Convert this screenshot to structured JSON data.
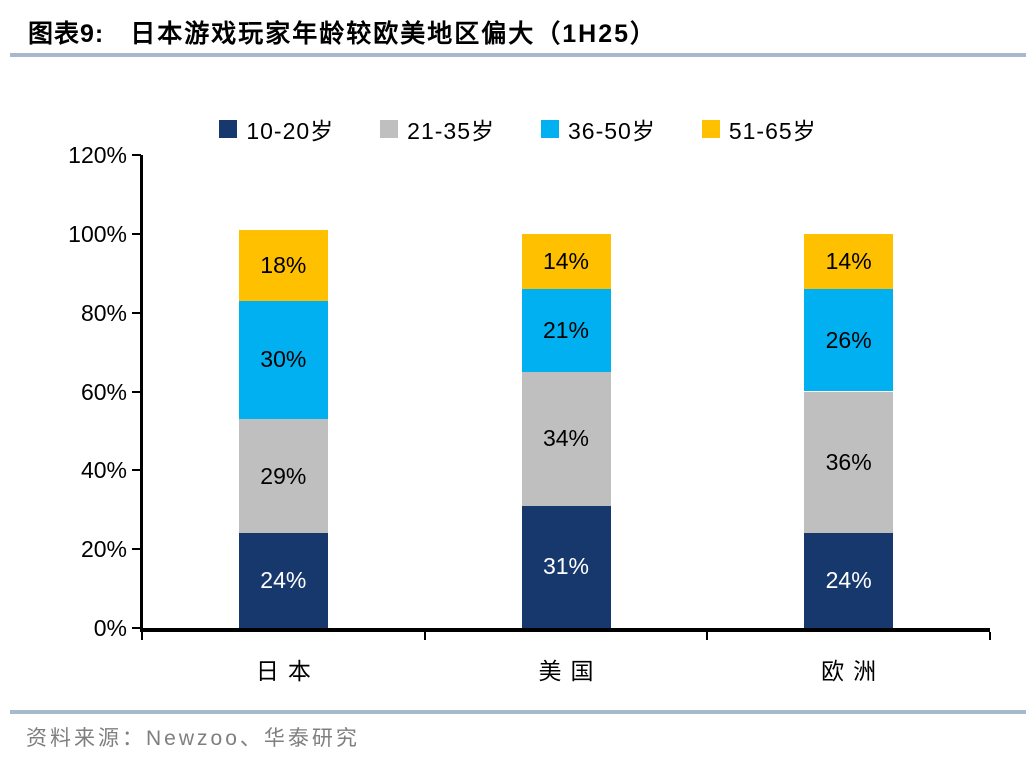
{
  "header": {
    "tag": "图表9:",
    "title": "日本游戏玩家年龄较欧美地区偏大（1H25）"
  },
  "chart_data": {
    "type": "bar",
    "stacked": true,
    "title": "日本游戏玩家年龄较欧美地区偏大（1H25）",
    "categories": [
      "日本",
      "美国",
      "欧洲"
    ],
    "series": [
      {
        "name": "10-20岁",
        "color": "#17386d",
        "label_color": "#ffffff",
        "values": [
          24,
          31,
          24
        ]
      },
      {
        "name": "21-35岁",
        "color": "#bfbfbf",
        "label_color": "#000000",
        "values": [
          29,
          34,
          36
        ]
      },
      {
        "name": "36-50岁",
        "color": "#00b0f0",
        "label_color": "#000000",
        "values": [
          30,
          21,
          26
        ]
      },
      {
        "name": "51-65岁",
        "color": "#ffc000",
        "label_color": "#000000",
        "values": [
          18,
          14,
          14
        ]
      }
    ],
    "value_suffix": "%",
    "xlabel": "",
    "ylabel": "",
    "ylim": [
      0,
      120
    ],
    "ytick_step": 20,
    "ytick_suffix": "%",
    "grid": false,
    "legend_position": "top"
  },
  "footer": {
    "source": "资料来源：Newzoo、华泰研究"
  },
  "colors": {
    "accent_rule": "#a6b9cd",
    "axis": "#000000",
    "source_text": "#7f7f7f"
  }
}
